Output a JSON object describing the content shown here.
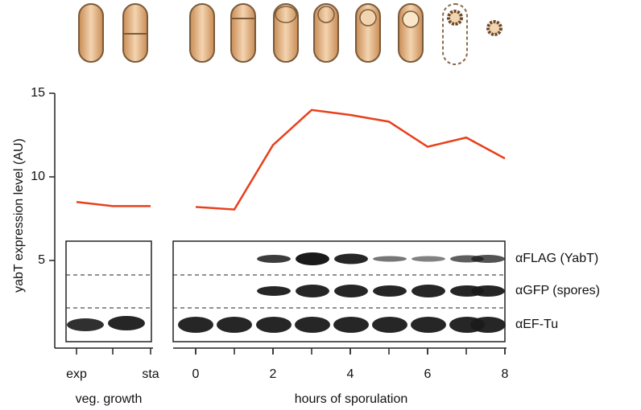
{
  "chart_data": {
    "type": "line",
    "ylabel": "yabT expression level (AU)",
    "ylim": [
      0,
      15
    ],
    "yticks": [
      5,
      10,
      15
    ],
    "color": "#e8401c",
    "panels": [
      {
        "xlabel": "veg. growth",
        "categories": [
          "exp",
          null,
          "sta"
        ],
        "values": [
          8.5,
          8.25,
          8.25
        ]
      },
      {
        "xlabel": "hours of sporulation",
        "x": [
          0,
          1,
          2,
          3,
          4,
          5,
          6,
          7,
          8
        ],
        "values": [
          8.2,
          8.05,
          11.9,
          14.0,
          13.7,
          13.3,
          11.8,
          12.35,
          11.1
        ],
        "xlim": [
          -0.5,
          8
        ],
        "xticks": [
          0,
          2,
          4,
          6,
          8
        ]
      }
    ],
    "annotations": [
      "αFLAG (YabT)",
      "αGFP (spores)",
      "αEF-Tu"
    ]
  }
}
